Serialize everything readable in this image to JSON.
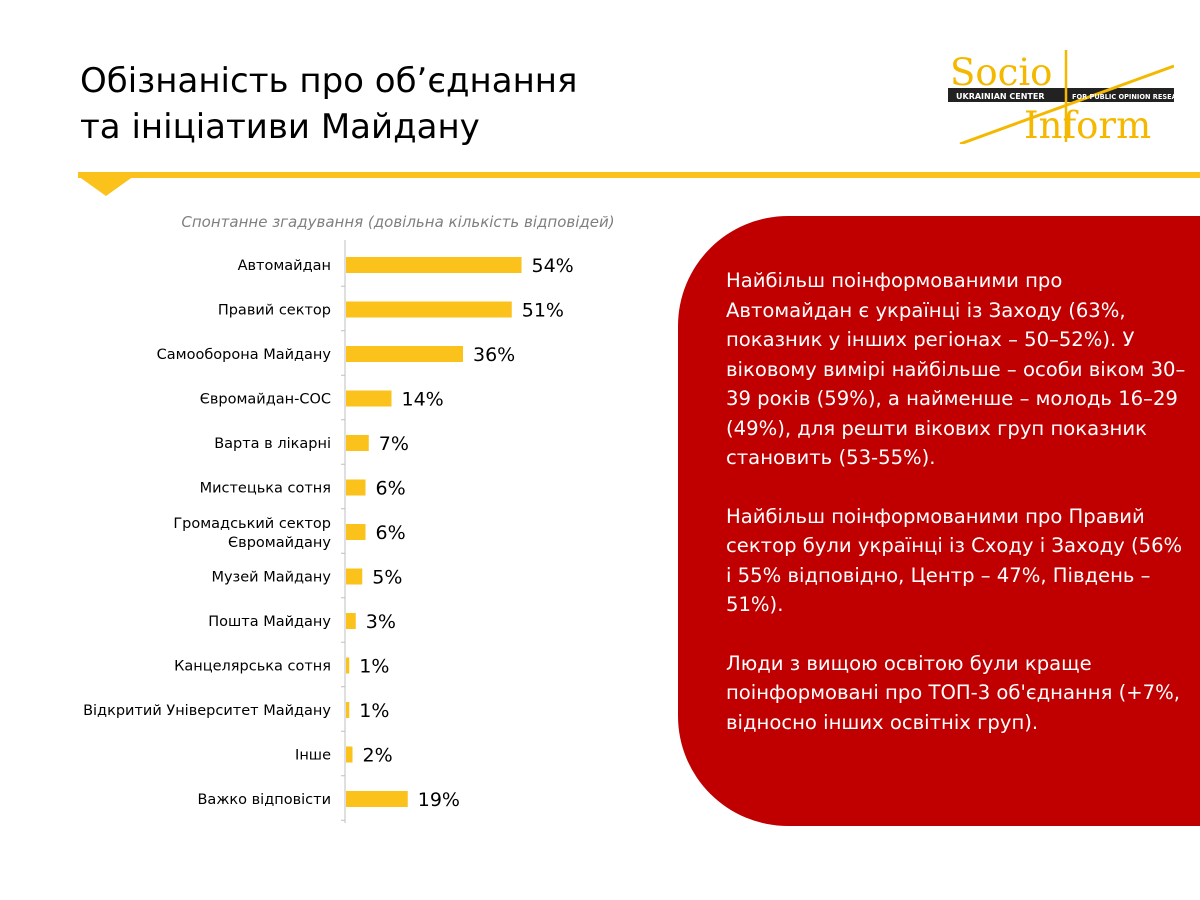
{
  "header": {
    "title_line1": "Обізнаність про об’єднання",
    "title_line2": "та ініціативи Майдану"
  },
  "logo": {
    "word1": "Socio",
    "word2": "Inform",
    "band_left": "UKRAINIAN CENTER",
    "band_right": "FOR PUBLIC OPINION RESEARCH",
    "color_gold": "#f5b800",
    "color_dark": "#222222"
  },
  "colors": {
    "accent": "#fac21b",
    "bar": "#fac21b",
    "panel": "#c00000"
  },
  "chart_data": {
    "type": "bar",
    "orientation": "horizontal",
    "title": "Спонтанне згадування (довільна кількість відповідей)",
    "categories": [
      "Автомайдан",
      "Правий сектор",
      "Самооборона Майдану",
      "Євромайдан-СОС",
      "Варта в лікарні",
      "Мистецька сотня",
      "Громадський сектор Євромайдану",
      "Музей Майдану",
      "Пошта Майдану",
      "Канцелярська сотня",
      "Відкритий Університет Майдану",
      "Інше",
      "Важко відповісти"
    ],
    "values": [
      54,
      51,
      36,
      14,
      7,
      6,
      6,
      5,
      3,
      1,
      1,
      2,
      19
    ],
    "value_labels": [
      "54%",
      "51%",
      "36%",
      "14%",
      "7%",
      "6%",
      "6%",
      "5%",
      "3%",
      "1%",
      "1%",
      "2%",
      "19%"
    ],
    "unit": "%",
    "xlim": [
      0,
      100
    ],
    "grid": false,
    "legend": "none"
  },
  "info_panel": {
    "paragraph1": "Найбільш поінформованими про Автомайдан є українці із Заходу (63%, показник у інших регіонах – 50–52%). У віковому вимірі найбільше – особи віком 30–39 років (59%), а найменше – молодь 16–29 (49%), для решти вікових груп показник становить (53-55%).",
    "paragraph2": "Найбільш поінформованими про Правий сектор були українці із Сходу і Заходу (56% і  55% відповідно, Центр – 47%, Південь – 51%).",
    "paragraph3": "Люди з вищою освітою були краще поінформовані про ТОП-3 об'єднання (+7%, відносно інших освітніх груп)."
  }
}
